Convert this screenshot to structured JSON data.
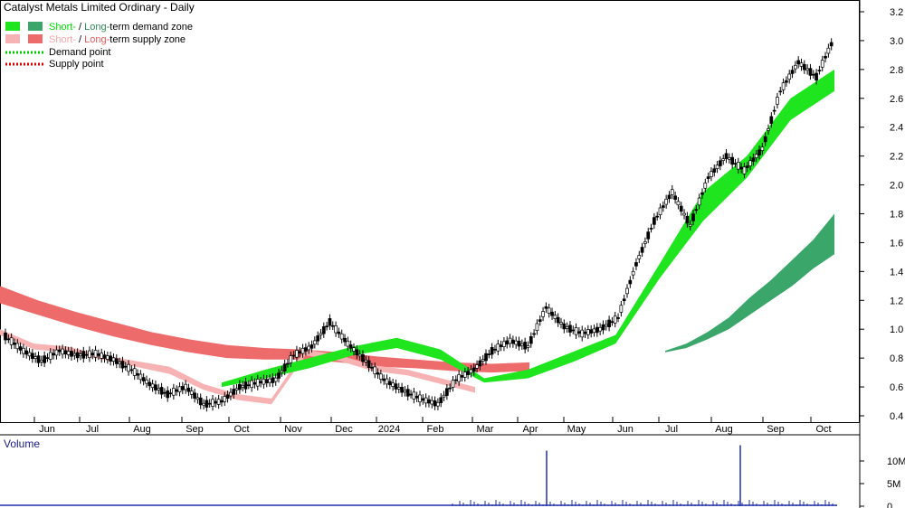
{
  "chart_data": [
    {
      "type": "candlestick",
      "title": "Catalyst Metals Limited Ordinary - Daily",
      "legend": [
        {
          "label_part1": "Short-",
          "sep": " / ",
          "label_part2": "Long-",
          "label_rest": "term demand zone",
          "part1_color": "#00dd00",
          "part2_color": "#2e8b57",
          "swatch_left": "#1ee51e",
          "swatch_right": "#3aa66a"
        },
        {
          "label_part1": "Short-",
          "sep": " / ",
          "label_part2": "Long-",
          "label_rest": "term supply zone",
          "part1_color": "#f4a6a6",
          "part2_color": "#e55a5a",
          "swatch_left": "#f7b3b3",
          "swatch_right": "#ee6b6b"
        },
        {
          "label": "Demand point",
          "line_color": "#00cc00"
        },
        {
          "label": "Supply point",
          "line_color": "#dd0000"
        }
      ],
      "x_labels": [
        "Jun",
        "Jul",
        "Aug",
        "Sep",
        "Oct",
        "Nov",
        "Dec",
        "2024",
        "Feb",
        "Mar",
        "Apr",
        "May",
        "Jun",
        "Jul",
        "Aug",
        "Sep",
        "Oct"
      ],
      "y_ticks": [
        "3.2",
        "3.0",
        "2.8",
        "2.6",
        "2.4",
        "2.2",
        "2.0",
        "1.8",
        "1.6",
        "1.4",
        "1.2",
        "1.0",
        "0.8",
        "0.6",
        "0.4"
      ],
      "ylim": [
        0.4,
        3.2
      ],
      "close": [
        0.95,
        0.85,
        0.78,
        0.85,
        0.82,
        0.83,
        0.79,
        0.72,
        0.62,
        0.55,
        0.6,
        0.48,
        0.5,
        0.6,
        0.63,
        0.65,
        0.82,
        0.88,
        1.05,
        0.9,
        0.78,
        0.65,
        0.58,
        0.52,
        0.48,
        0.65,
        0.72,
        0.85,
        0.92,
        0.88,
        1.15,
        1.02,
        0.97,
        1.0,
        1.08,
        1.45,
        1.75,
        1.95,
        1.72,
        2.05,
        2.2,
        2.1,
        2.25,
        2.65,
        2.85,
        2.75,
        3.02
      ],
      "zones": {
        "short_supply": {
          "color": "#f7b3b3",
          "upper": [
            1.0,
            0.9,
            0.88,
            0.82,
            0.78,
            0.74,
            0.62,
            0.55,
            0.52,
            0.86,
            0.82,
            0.75,
            0.72,
            0.66,
            0.6
          ],
          "lower": [
            0.96,
            0.86,
            0.84,
            0.79,
            0.74,
            0.69,
            0.58,
            0.51,
            0.48,
            0.82,
            0.78,
            0.71,
            0.68,
            0.62,
            0.56
          ]
        },
        "long_supply": {
          "color": "#ee6b6b",
          "upper": [
            1.3,
            1.2,
            1.12,
            1.05,
            0.98,
            0.93,
            0.89,
            0.87,
            0.86,
            0.84,
            0.81,
            0.79,
            0.77,
            0.76,
            0.77
          ],
          "lower": [
            1.18,
            1.1,
            1.02,
            0.95,
            0.89,
            0.84,
            0.8,
            0.79,
            0.79,
            0.77,
            0.74,
            0.73,
            0.71,
            0.7,
            0.71
          ]
        },
        "short_demand": {
          "color": "#1ee51e",
          "upper": [
            0.63,
            0.72,
            0.8,
            0.88,
            0.94,
            0.86,
            0.66,
            0.72,
            0.84,
            0.96,
            1.45,
            1.95,
            2.2,
            2.6,
            2.8
          ],
          "lower": [
            0.6,
            0.66,
            0.73,
            0.82,
            0.87,
            0.79,
            0.63,
            0.66,
            0.77,
            0.9,
            1.35,
            1.75,
            2.05,
            2.45,
            2.65
          ]
        },
        "long_demand": {
          "color": "#3aa66a",
          "upper": [
            0.85,
            0.9,
            0.98,
            1.08,
            1.22,
            1.34,
            1.48,
            1.62,
            1.8
          ],
          "lower": [
            0.84,
            0.87,
            0.93,
            1.0,
            1.1,
            1.2,
            1.3,
            1.42,
            1.52
          ]
        }
      }
    },
    {
      "type": "bar",
      "title": "Volume",
      "y_ticks": [
        "10M",
        "5M",
        "0"
      ],
      "ylim": [
        0,
        15
      ],
      "spikes": [
        {
          "month": "Apr",
          "value": 12.3
        },
        {
          "month": "Aug",
          "value": 13.5
        }
      ]
    }
  ]
}
